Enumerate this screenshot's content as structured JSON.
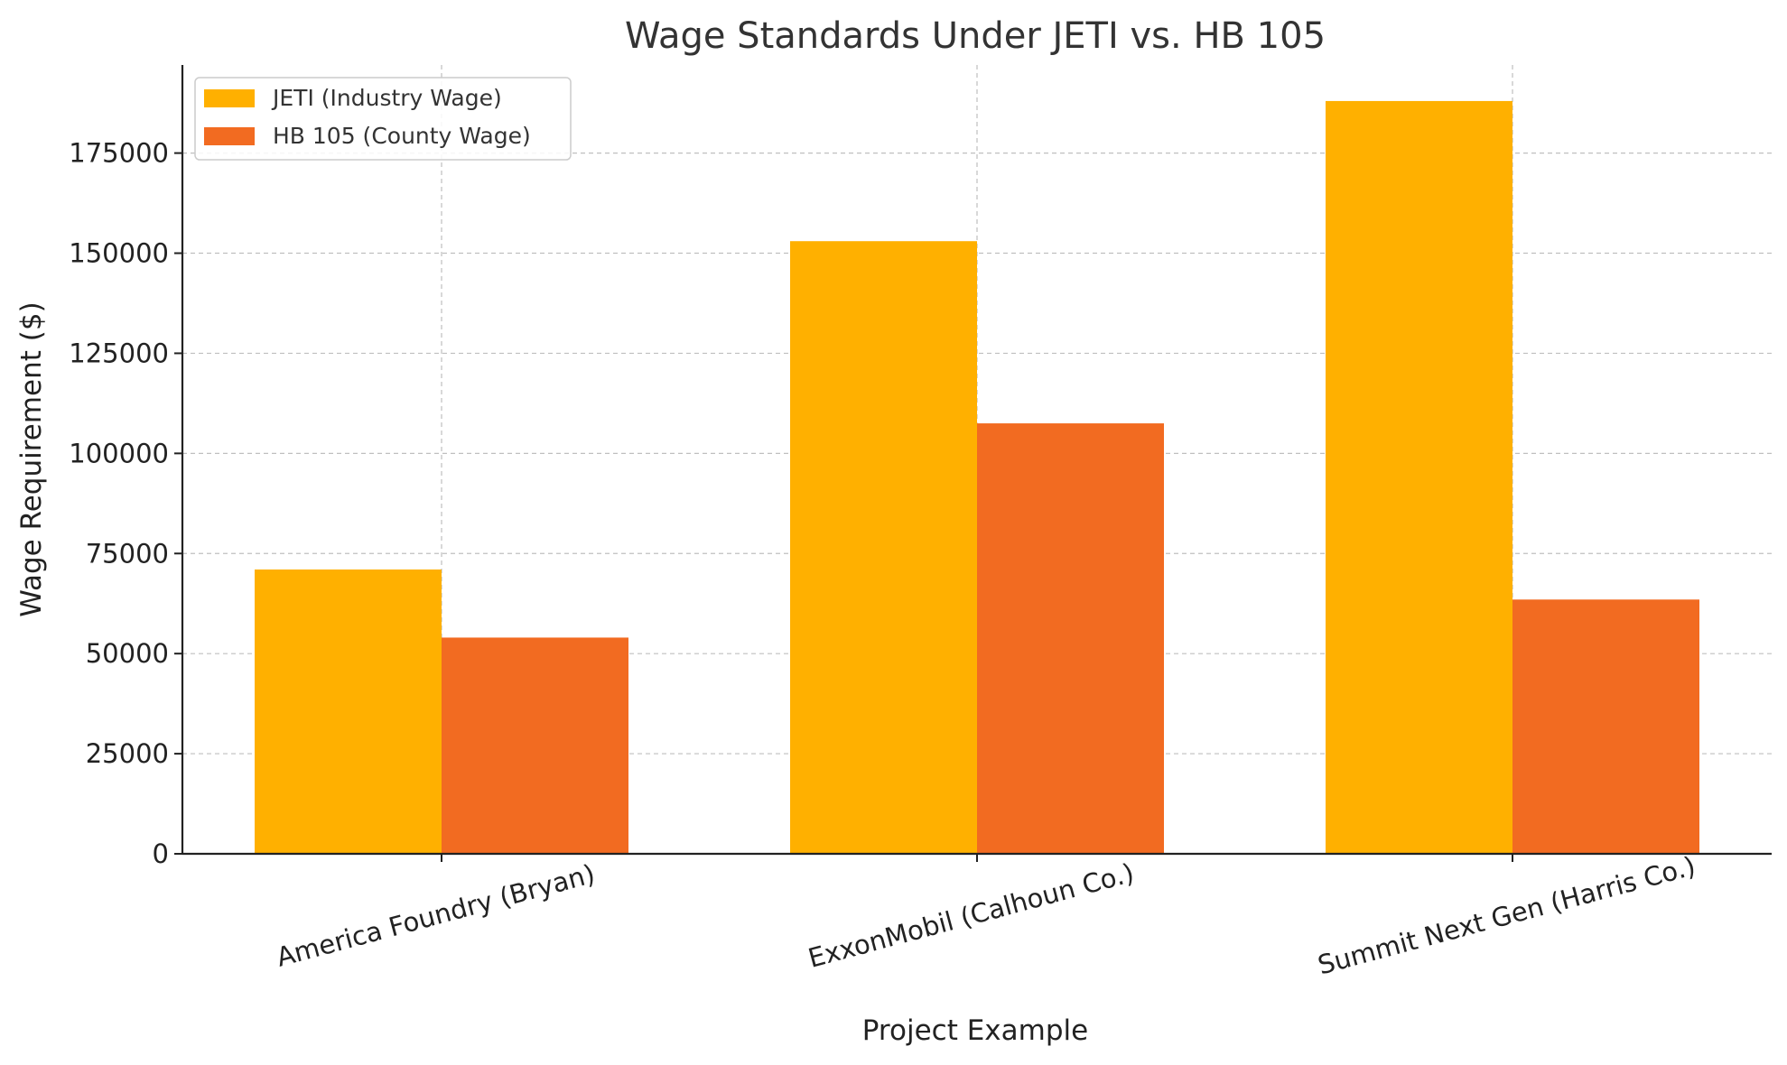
{
  "chart_data": {
    "type": "bar",
    "title": "Wage Standards Under JETI vs. HB 105",
    "xlabel": "Project Example",
    "ylabel": "Wage Requirement ($)",
    "categories": [
      "America Foundry (Bryan)",
      "ExxonMobil (Calhoun Co.)",
      "Summit Next Gen (Harris Co.)"
    ],
    "series": [
      {
        "name": "JETI (Industry Wage)",
        "values": [
          71000,
          153000,
          188000
        ],
        "color": "#FFB000"
      },
      {
        "name": "HB 105 (County Wage)",
        "values": [
          54000,
          107500,
          63500
        ],
        "color": "#F26B21"
      }
    ],
    "yticks": [
      0,
      25000,
      50000,
      75000,
      100000,
      125000,
      150000,
      175000
    ],
    "ylim": [
      0,
      197000
    ],
    "grid": true,
    "legend_position": "top-left"
  }
}
